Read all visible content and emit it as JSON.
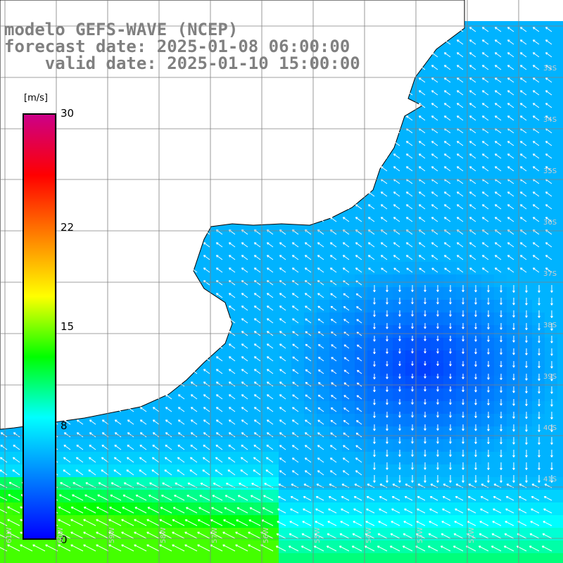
{
  "title": {
    "line1": "modelo GEFS-WAVE (NCEP)",
    "line2": "forecast date: 2025-01-08 06:00:00",
    "line3": "    valid date: 2025-01-10 15:00:00"
  },
  "colorbar": {
    "unit": "[m/s]",
    "min": 0,
    "max": 30,
    "ticks": [
      "30",
      "22",
      "15",
      "8",
      "0"
    ],
    "colors": [
      "#0000ff",
      "#0080ff",
      "#00ffff",
      "#00ff00",
      "#ffff00",
      "#ff8000",
      "#ff0000",
      "#cc0088"
    ]
  },
  "map": {
    "lat_labels": [
      "33S",
      "34S",
      "35S",
      "36S",
      "37S",
      "38S",
      "39S",
      "40S",
      "41S"
    ],
    "lon_labels": [
      "61W",
      "60W",
      "59W",
      "58W",
      "57W",
      "56W",
      "55W",
      "54W",
      "53W",
      "52W"
    ],
    "land_color": "#ffffff",
    "coast_color": "#000000",
    "grid_color": "#808080",
    "arrow_color": "#ffffff"
  }
}
